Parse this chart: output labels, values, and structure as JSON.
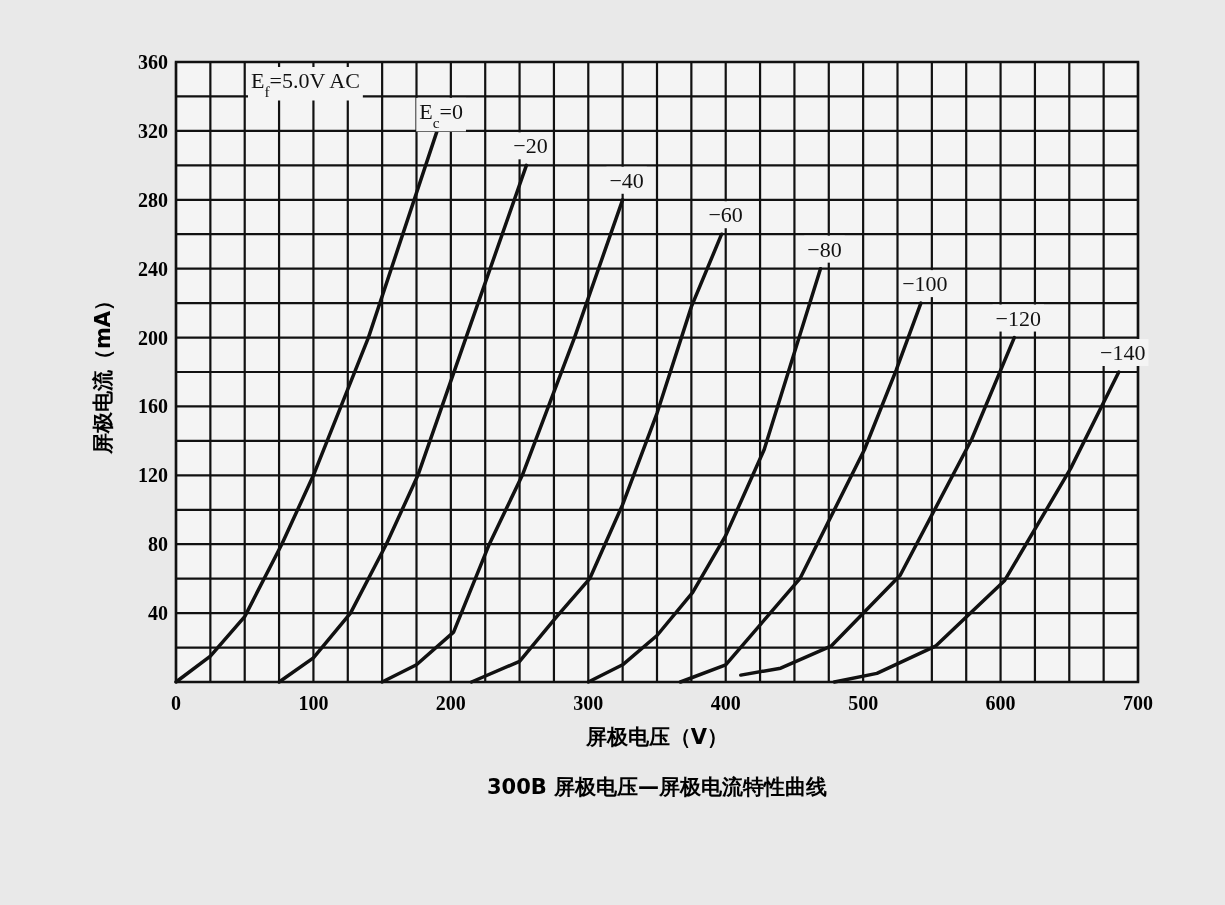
{
  "chart_data": {
    "type": "line",
    "title": "300B 屏极电压—屏极电流特性曲线",
    "xlabel": "屏极电压（V）",
    "ylabel": "屏极电流（mA）",
    "annotations": [
      "E$_{f}$=5.0V AC"
    ],
    "xlim": [
      0,
      700
    ],
    "ylim": [
      0,
      360
    ],
    "xticks": [
      0,
      {
        "value": 25,
        "label": null
      },
      {
        "value": 50,
        "label": null
      },
      {
        "value": 75,
        "label": null
      },
      100,
      {
        "value": 125,
        "label": null
      },
      {
        "value": 150,
        "label": null
      },
      {
        "value": 175,
        "label": null
      },
      200,
      {
        "value": 225,
        "label": null
      },
      {
        "value": 250,
        "label": null
      },
      {
        "value": 275,
        "label": null
      },
      300,
      {
        "value": 325,
        "label": null
      },
      {
        "value": 350,
        "label": null
      },
      {
        "value": 375,
        "label": null
      },
      400,
      {
        "value": 425,
        "label": null
      },
      {
        "value": 450,
        "label": null
      },
      {
        "value": 475,
        "label": null
      },
      500,
      {
        "value": 525,
        "label": null
      },
      {
        "value": 550,
        "label": null
      },
      {
        "value": 575,
        "label": null
      },
      600,
      {
        "value": 625,
        "label": null
      },
      {
        "value": 650,
        "label": null
      },
      {
        "value": 675,
        "label": null
      },
      700
    ],
    "yticks": [
      {
        "value": 0,
        "label": null
      },
      {
        "value": 20,
        "label": null
      },
      40,
      {
        "value": 60,
        "label": null
      },
      80,
      {
        "value": 100,
        "label": null
      },
      120,
      {
        "value": 140,
        "label": null
      },
      160,
      {
        "value": 180,
        "label": null
      },
      200,
      {
        "value": 220,
        "label": null
      },
      240,
      {
        "value": 260,
        "label": null
      },
      280,
      {
        "value": 300,
        "label": null
      },
      320,
      {
        "value": 340,
        "label": null
      },
      360
    ],
    "grid": true,
    "line_style": "solid",
    "marker": "none",
    "series": [
      {
        "name": "E$_{c}$=0",
        "color": "#111111",
        "x": [
          0,
          25,
          50,
          77,
          100,
          140,
          190
        ],
        "values": [
          0,
          15,
          38,
          80,
          120,
          200,
          320
        ]
      },
      {
        "name": "−20",
        "color": "#111111",
        "x": [
          75,
          100,
          127,
          153,
          176,
          211,
          255
        ],
        "values": [
          0,
          14,
          40,
          80,
          120,
          200,
          300
        ]
      },
      {
        "name": "−40",
        "color": "#111111",
        "x": [
          150,
          175,
          202,
          228,
          252,
          290,
          325
        ],
        "values": [
          0,
          10,
          29,
          80,
          120,
          200,
          280
        ]
      },
      {
        "name": "−60",
        "color": "#111111",
        "x": [
          215,
          250,
          277,
          301,
          325,
          350,
          375,
          397
        ],
        "values": [
          0,
          12,
          38,
          60,
          103,
          156,
          218,
          260
        ]
      },
      {
        "name": "−80",
        "color": "#111111",
        "x": [
          300,
          325,
          350,
          376,
          400,
          428,
          469
        ],
        "values": [
          0,
          10,
          27,
          52,
          85,
          135,
          240
        ]
      },
      {
        "name": "−100",
        "color": "#111111",
        "x": [
          367,
          400,
          454,
          501,
          524,
          542
        ],
        "values": [
          0,
          10,
          60,
          135,
          181,
          220
        ]
      },
      {
        "name": "−120",
        "color": "#111111",
        "x": [
          411,
          440,
          477,
          527,
          579,
          610
        ],
        "values": [
          4,
          8,
          21,
          62,
          141,
          200
        ]
      },
      {
        "name": "−140",
        "color": "#111111",
        "x": [
          479,
          510,
          553,
          603,
          651,
          686
        ],
        "values": [
          0,
          5,
          21,
          59,
          124,
          180
        ]
      }
    ]
  }
}
